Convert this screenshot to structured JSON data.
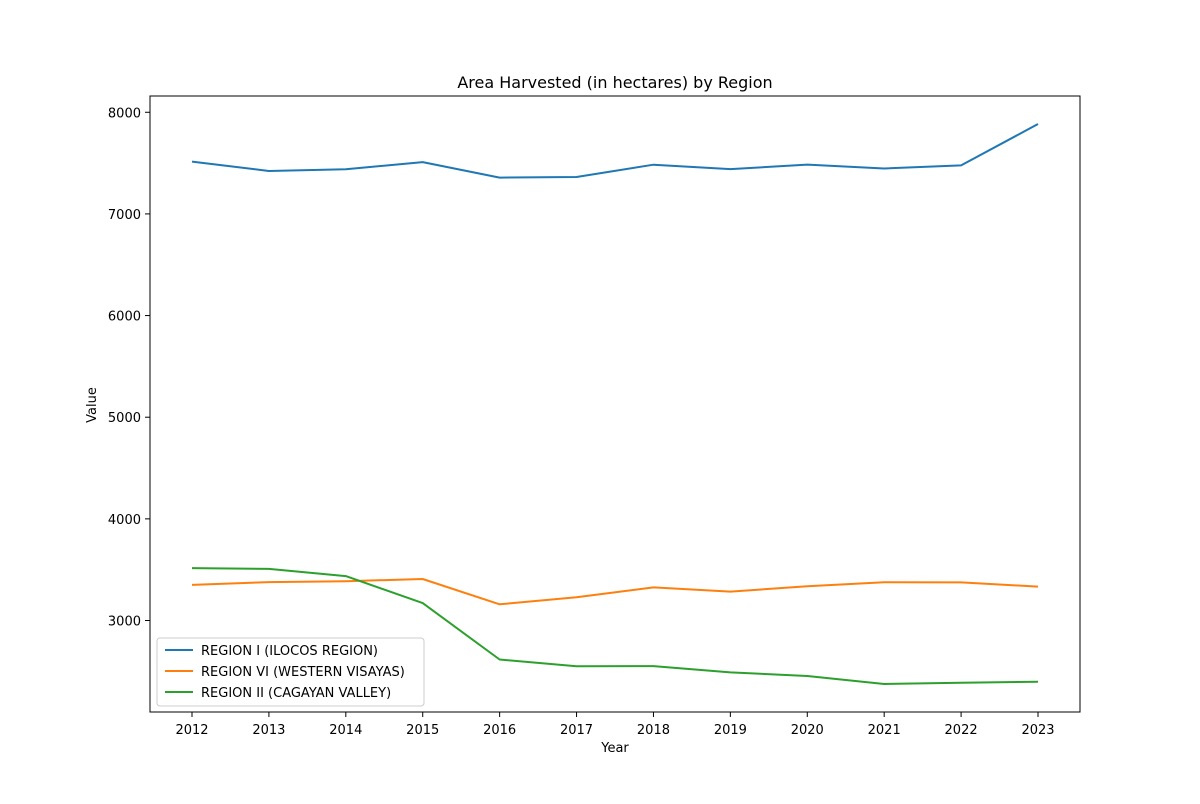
{
  "chart_data": {
    "type": "line",
    "title": "Area Harvested (in hectares) by Region",
    "xlabel": "Year",
    "ylabel": "Value",
    "x": [
      "2012",
      "2013",
      "2014",
      "2015",
      "2016",
      "2017",
      "2018",
      "2019",
      "2020",
      "2021",
      "2022",
      "2023"
    ],
    "ylim": [
      2100,
      8160
    ],
    "yticks": [
      3000,
      4000,
      5000,
      6000,
      7000,
      8000
    ],
    "grid": false,
    "legend_position": "lower-left",
    "series": [
      {
        "name": "REGION I (ILOCOS REGION)",
        "color": "#1f77b4",
        "values": [
          7515,
          7422,
          7440,
          7510,
          7357,
          7363,
          7484,
          7441,
          7485,
          7447,
          7477,
          7885
        ]
      },
      {
        "name": "REGION VI (WESTERN VISAYAS)",
        "color": "#ff7f0e",
        "values": [
          3350,
          3378,
          3387,
          3408,
          3160,
          3228,
          3326,
          3284,
          3337,
          3377,
          3375,
          3334
        ]
      },
      {
        "name": "REGION II (CAGAYAN VALLEY)",
        "color": "#2ca02c",
        "values": [
          3516,
          3508,
          3437,
          3171,
          2616,
          2550,
          2552,
          2490,
          2454,
          2375,
          2388,
          2398
        ]
      }
    ]
  }
}
